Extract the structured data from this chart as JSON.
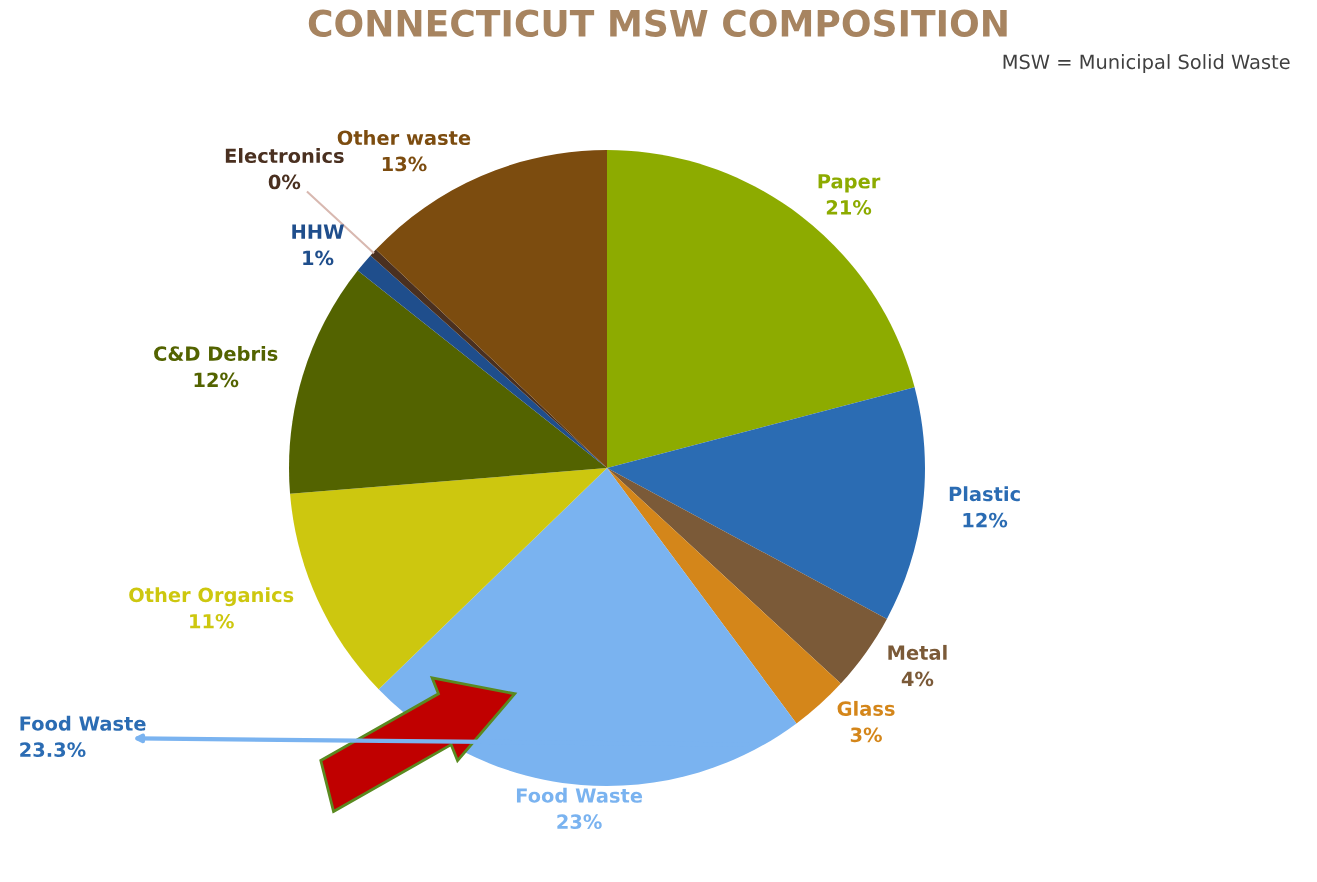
{
  "chart_data": {
    "type": "pie",
    "title": "CONNECTICUT MSW COMPOSITION",
    "categories": [
      "Paper",
      "Plastic",
      "Metal",
      "Glass",
      "Food Waste",
      "Other Organics",
      "C&D Debris",
      "HHW",
      "Electronics",
      "Other waste"
    ],
    "values": [
      21,
      12,
      4,
      3,
      23,
      11,
      12,
      1,
      0.4,
      13
    ],
    "value_labels": [
      "21%",
      "12%",
      "4%",
      "3%",
      "23%",
      "11%",
      "12%",
      "1%",
      "0%",
      "13%"
    ],
    "colors": [
      "#8dab00",
      "#2b6cb3",
      "#7b5a38",
      "#d4861a",
      "#7ab3f0",
      "#cdc70f",
      "#536300",
      "#1f4e8c",
      "#4a3020",
      "#7c4c0f"
    ],
    "annotations": [
      "MSW = Municipal Solid Waste",
      "Food Waste\n23.3%"
    ]
  }
}
